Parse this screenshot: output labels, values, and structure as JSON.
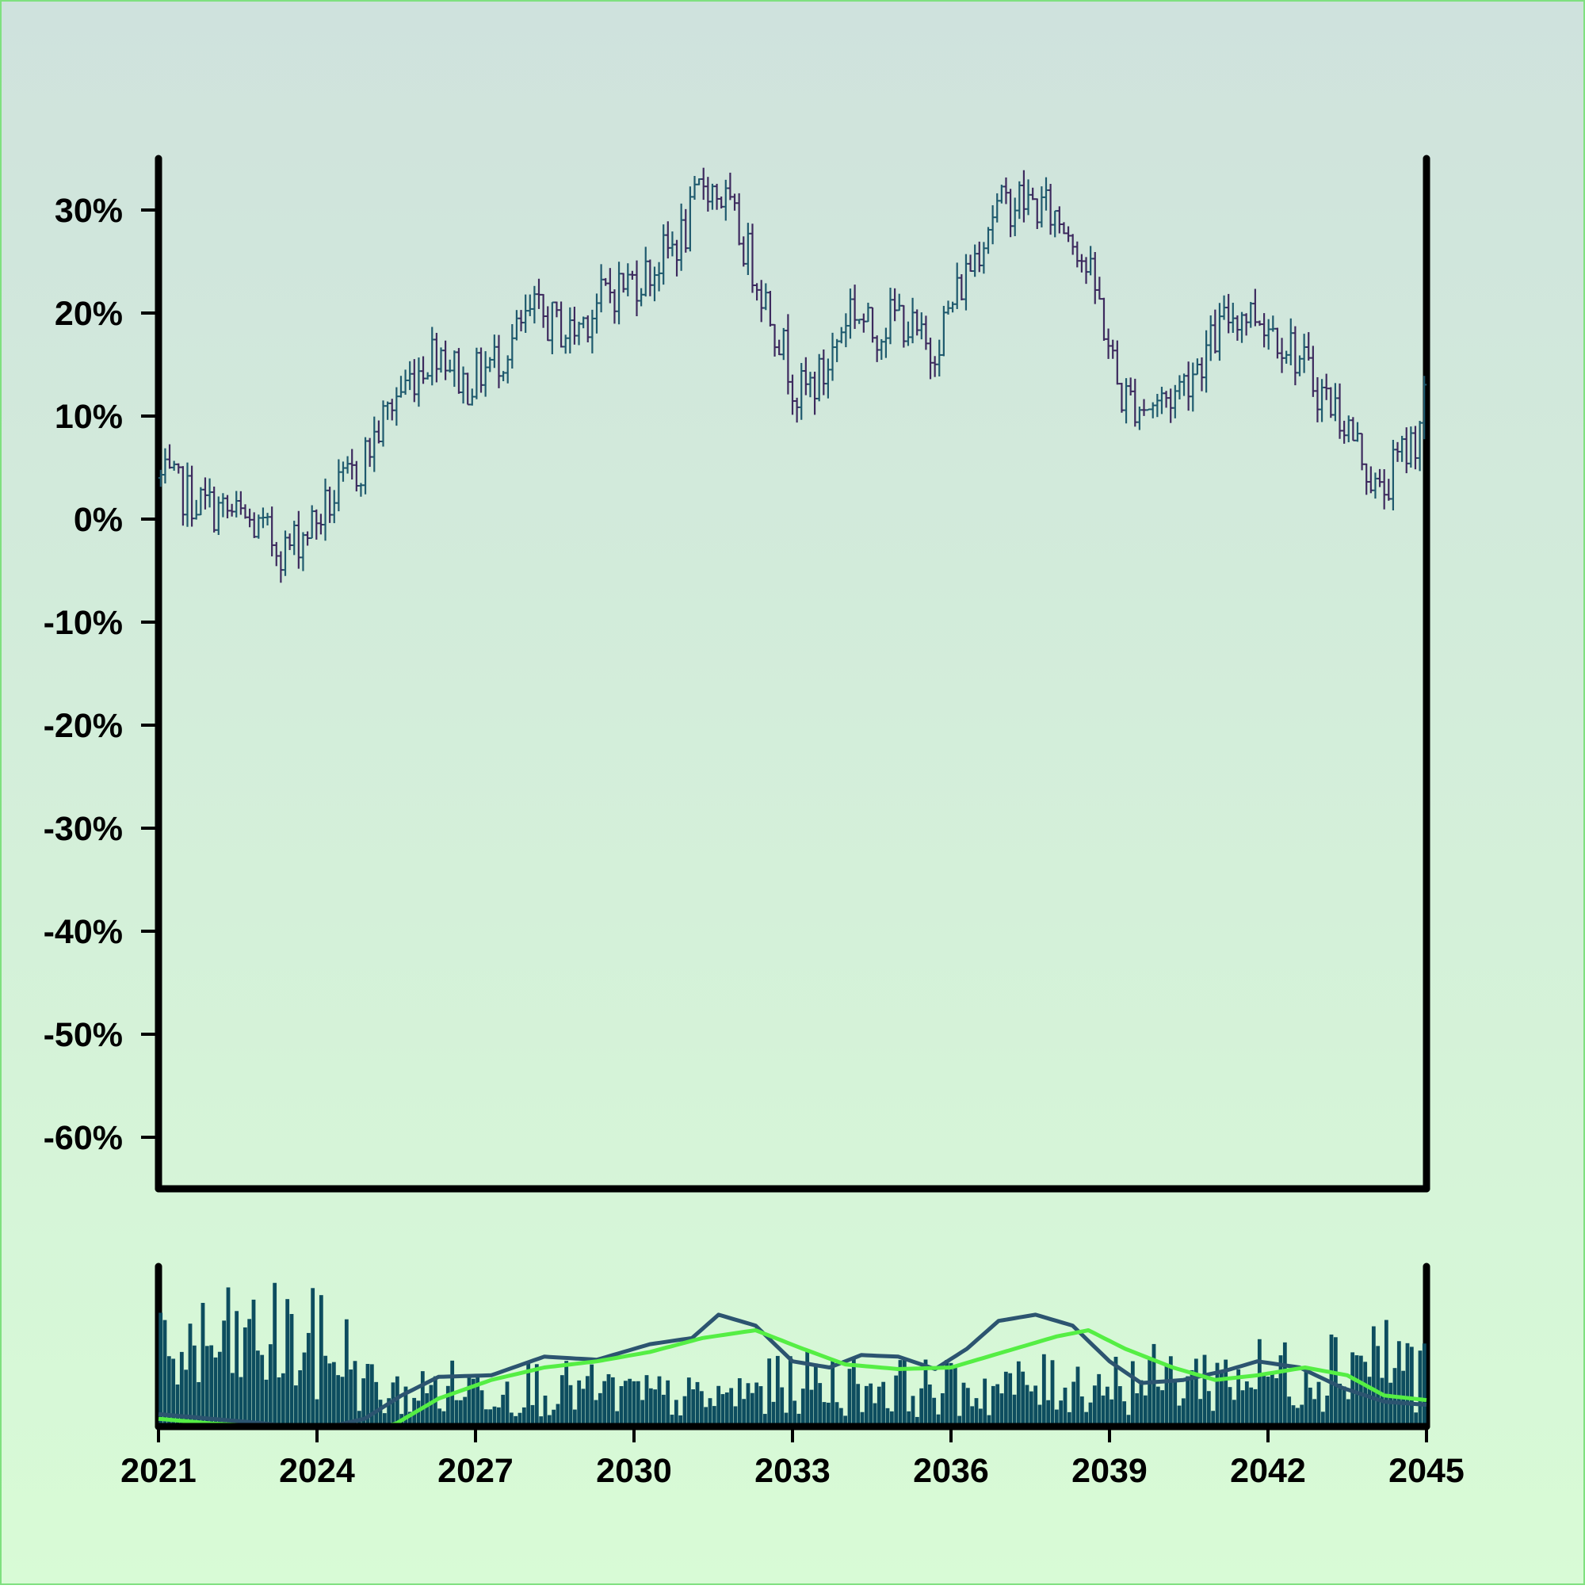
{
  "chart_data": {
    "type": "ohlc",
    "title": "",
    "xlabel": "",
    "ylabel": "",
    "x_range": [
      2021,
      2045
    ],
    "x_ticks": [
      "2021",
      "2024",
      "2027",
      "2030",
      "2033",
      "2036",
      "2039",
      "2042",
      "2045"
    ],
    "y_range": [
      -65,
      35
    ],
    "y_ticks": [
      "30%",
      "20%",
      "10%",
      "0%",
      "-10%",
      "-20%",
      "-30%",
      "-40%",
      "-50%",
      "-60%"
    ],
    "grid": false,
    "legend": "none",
    "colors": {
      "background_top": "#cfe2dd",
      "background_bottom": "#d8fbd6",
      "border": "#7fe07f",
      "bar_up": "#1f5a6e",
      "bar_down": "#3d2a5e",
      "volume": "#0d4d5f",
      "ma_fast": "#2c5470",
      "ma_slow": "#55ee44",
      "axis": "#000000"
    },
    "price_anchors": {
      "years": [
        2021.0,
        2021.8,
        2022.6,
        2023.4,
        2024.0,
        2024.8,
        2025.5,
        2026.3,
        2026.8,
        2027.5,
        2028.1,
        2028.8,
        2029.5,
        2030.3,
        2031.0,
        2031.3,
        2031.7,
        2032.3,
        2032.8,
        2033.1,
        2033.6,
        2034.1,
        2034.5,
        2035.0,
        2035.6,
        2036.3,
        2036.8,
        2037.3,
        2037.8,
        2038.3,
        2038.8,
        2039.2,
        2039.7,
        2040.2,
        2040.8,
        2041.3,
        2041.8,
        2042.4,
        2042.9,
        2043.4,
        2043.8,
        2044.1,
        2044.5,
        2044.8,
        2045.0
      ],
      "values": [
        4,
        1.5,
        0,
        -3,
        0,
        5,
        12,
        17,
        13,
        16,
        20,
        18,
        22,
        24,
        28,
        33,
        31,
        24,
        17,
        12,
        14,
        21,
        18,
        20,
        16,
        24,
        30,
        31,
        30,
        28,
        21,
        12,
        11,
        12,
        16,
        20,
        20,
        17,
        13,
        10,
        6,
        2,
        6,
        8,
        13
      ]
    },
    "volume_profile": {
      "years": [
        2021.0,
        2022.0,
        2023.3,
        2024.5,
        2025.2,
        2026.5,
        2028.0,
        2030.0,
        2031.5,
        2033.0,
        2035.0,
        2036.5,
        2038.5,
        2040.5,
        2042.5,
        2044.0,
        2045.0
      ],
      "values": [
        0.72,
        0.8,
        0.88,
        0.75,
        0.3,
        0.4,
        0.42,
        0.33,
        0.28,
        0.45,
        0.42,
        0.38,
        0.45,
        0.5,
        0.55,
        0.78,
        0.55
      ]
    },
    "ma_fast": {
      "years": [
        2021.0,
        2022.0,
        2023.0,
        2024.0,
        2024.9,
        2025.6,
        2026.3,
        2027.3,
        2028.3,
        2029.3,
        2030.3,
        2031.1,
        2031.6,
        2032.3,
        2033.0,
        2033.7,
        2034.3,
        2035.0,
        2035.7,
        2036.3,
        2036.9,
        2037.6,
        2038.3,
        2039.0,
        2039.6,
        2040.4,
        2041.2,
        2041.8,
        2042.6,
        2043.4,
        2044.2,
        2045.0
      ],
      "values": [
        0.08,
        0.05,
        0.02,
        -0.02,
        0.05,
        0.2,
        0.32,
        0.33,
        0.45,
        0.43,
        0.53,
        0.57,
        0.72,
        0.65,
        0.42,
        0.38,
        0.46,
        0.45,
        0.37,
        0.5,
        0.68,
        0.72,
        0.65,
        0.42,
        0.28,
        0.3,
        0.36,
        0.42,
        0.38,
        0.25,
        0.16,
        0.14
      ]
    },
    "ma_slow": {
      "years": [
        2021.0,
        2022.0,
        2023.0,
        2024.0,
        2025.0,
        2025.5,
        2026.3,
        2027.3,
        2028.3,
        2029.3,
        2030.3,
        2031.3,
        2032.3,
        2033.2,
        2034.0,
        2035.0,
        2036.0,
        2037.0,
        2038.0,
        2038.6,
        2039.3,
        2040.2,
        2041.0,
        2041.8,
        2042.7,
        2043.5,
        2044.2,
        2045.0
      ],
      "values": [
        0.05,
        0.02,
        0.0,
        -0.04,
        -0.03,
        0.02,
        0.18,
        0.3,
        0.38,
        0.42,
        0.48,
        0.57,
        0.62,
        0.5,
        0.4,
        0.37,
        0.38,
        0.48,
        0.58,
        0.62,
        0.5,
        0.38,
        0.3,
        0.33,
        0.38,
        0.33,
        0.2,
        0.17
      ]
    }
  }
}
